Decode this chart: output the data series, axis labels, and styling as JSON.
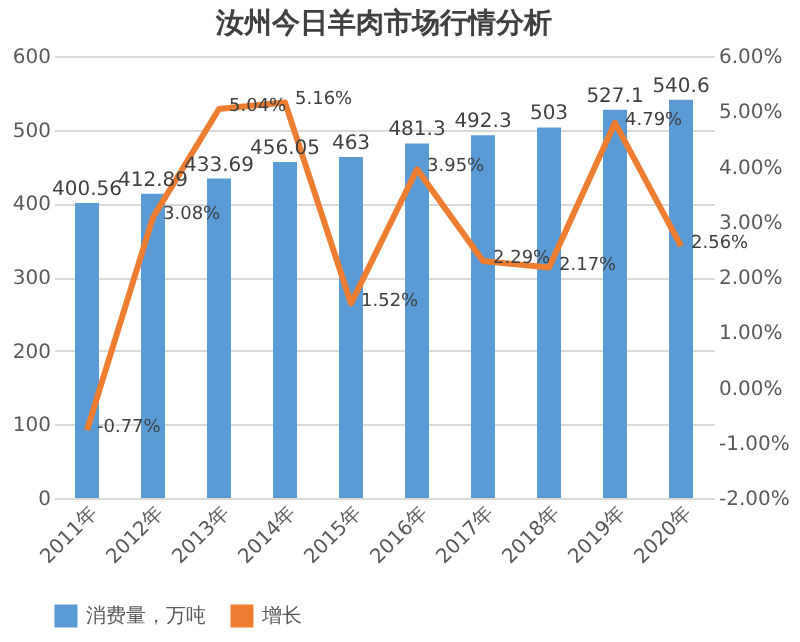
{
  "chart_data": {
    "type": "bar",
    "title": "汝州今日羊肉市场行情分析",
    "categories": [
      "2011年",
      "2012年",
      "2013年",
      "2014年",
      "2015年",
      "2016年",
      "2017年",
      "2018年",
      "2019年",
      "2020年"
    ],
    "series": [
      {
        "name": "消费量，万吨",
        "color": "#5b9bd5",
        "values": [
          400.56,
          412.89,
          433.69,
          456.05,
          463,
          481.3,
          492.3,
          503,
          527.1,
          540.6
        ],
        "value_labels": [
          "400.56",
          "412.89",
          "433.69",
          "456.05",
          "463",
          "481.3",
          "492.3",
          "503",
          "527.1",
          "540.6"
        ]
      },
      {
        "name": "增长",
        "type": "line",
        "axis": "y2",
        "color": "#ed7d31",
        "values": [
          -0.77,
          3.08,
          5.04,
          5.16,
          1.52,
          3.95,
          2.29,
          2.17,
          4.79,
          2.56
        ],
        "value_labels": [
          "-0.77%",
          "3.08%",
          "5.04%",
          "5.16%",
          "1.52%",
          "3.95%",
          "2.29%",
          "2.17%",
          "4.79%",
          "2.56%"
        ]
      }
    ],
    "ylim": [
      0,
      600
    ],
    "yticks": [
      0,
      100,
      200,
      300,
      400,
      500,
      600
    ],
    "y2lim": [
      -2,
      6
    ],
    "y2ticks": [
      {
        "value": -2,
        "label": "-2.00%"
      },
      {
        "value": -1,
        "label": "-1.00%"
      },
      {
        "value": 0,
        "label": "0.00%"
      },
      {
        "value": 1,
        "label": "1.00%"
      },
      {
        "value": 2,
        "label": "2.00%"
      },
      {
        "value": 3,
        "label": "3.00%"
      },
      {
        "value": 4,
        "label": "4.00%"
      },
      {
        "value": 5,
        "label": "5.00%"
      },
      {
        "value": 6,
        "label": "6.00%"
      }
    ],
    "grid": "y",
    "legend": "bottom",
    "marker": "none",
    "line_style": "solid"
  }
}
